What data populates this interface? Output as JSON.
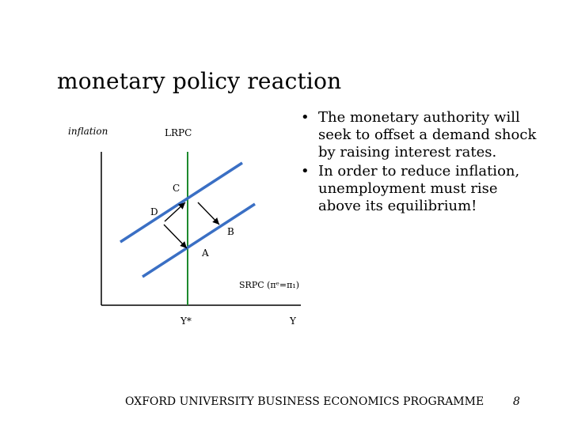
{
  "slide": {
    "title": "monetary policy reaction",
    "bullets": [
      "The monetary authority will seek to offset a demand shock by raising interest rates.",
      "In order to reduce inflation, unemployment must rise above its equilibrium!"
    ],
    "footer": "OXFORD UNIVERSITY BUSINESS ECONOMICS PROGRAMME",
    "page_number": "8"
  },
  "diagram": {
    "y_axis_label": "inflation",
    "x_axis_label": "Y",
    "lrpc_label": "LRPC",
    "ystar_label": "Y*",
    "point_labels": {
      "a": "A",
      "b": "B",
      "c": "C",
      "d": "D"
    },
    "srpc_label": "SRPC (πᵉ=π₁)",
    "colors": {
      "srpc_line": "#3a6fc4",
      "lrpc_line": "#1e8a2e",
      "axes": "#000000",
      "arrows": "#000000"
    }
  }
}
